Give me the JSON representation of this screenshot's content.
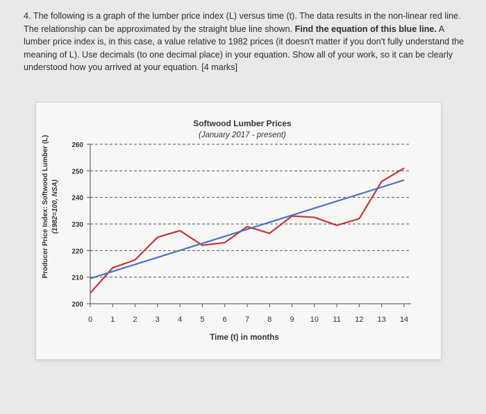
{
  "question": {
    "part1": "4. The following is a graph of the lumber price index (L) versus time (t). The data results in the non-linear red line. The relationship can be approximated by the straight blue line shown. ",
    "bold1": "Find the equation of this blue line.",
    "part2": " A lumber price index is, in this case, a value relative to 1982 prices (it doesn't matter if you don't fully understand the meaning of L). Use decimals (to one decimal place) in your equation. Show all of your work, so it can be clearly understood how you arrived at your equation. [4 marks]"
  },
  "chart_data": {
    "type": "line",
    "title": "Softwood Lumber Prices",
    "subtitle": "(January 2017 - present)",
    "xlabel": "Time (t) in months",
    "ylabel": "Producer Price Index: Softwood Lumber (L)",
    "ylabel2": "(1982=100, NSA)",
    "xlim": [
      0,
      14
    ],
    "ylim": [
      200,
      260
    ],
    "xticks": [
      0,
      1,
      2,
      3,
      4,
      5,
      6,
      7,
      8,
      9,
      10,
      11,
      12,
      13,
      14
    ],
    "yticks": [
      200,
      210,
      220,
      230,
      240,
      250,
      260
    ],
    "grid": "horizontal dashed",
    "series": [
      {
        "color": "#cc3333",
        "x": [
          0,
          1,
          2,
          3,
          4,
          5,
          6,
          7,
          8,
          9,
          10,
          11,
          12,
          13,
          14
        ],
        "y": [
          204,
          213.5,
          216.5,
          225,
          227.5,
          222,
          223,
          229,
          226.5,
          233,
          232.5,
          229.5,
          232,
          246,
          251
        ]
      },
      {
        "color": "#4a70c4",
        "x": [
          0,
          14
        ],
        "y": [
          209.5,
          246.5
        ]
      }
    ]
  }
}
